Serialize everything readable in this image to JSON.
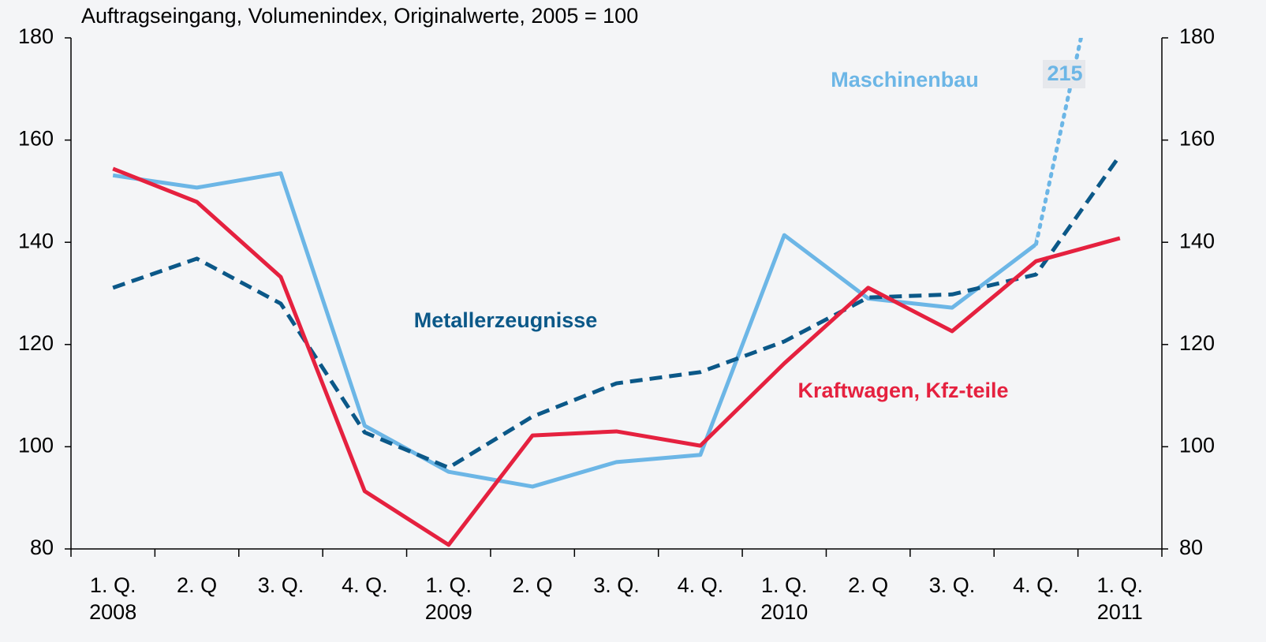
{
  "chart_data": {
    "type": "line",
    "title": "Auftragseingang, Volumenindex, Originalwerte,  2005 = 100",
    "categories": [
      "1. Q.",
      "2. Q",
      "3. Q.",
      "4. Q.",
      "1. Q.",
      "2. Q",
      "3. Q.",
      "4. Q.",
      "1. Q.",
      "2. Q",
      "3. Q.",
      "4. Q.",
      "1. Q."
    ],
    "years": [
      "2008",
      null,
      null,
      null,
      "2009",
      null,
      null,
      null,
      "2010",
      null,
      null,
      null,
      "2011"
    ],
    "series": [
      {
        "name": "Maschinenbau",
        "color": "#6cb6e6",
        "dotted_from": 11,
        "values": [
          153.1,
          150.7,
          153.5,
          104.1,
          95.1,
          92.2,
          97.0,
          98.4,
          141.4,
          129.0,
          127.2,
          139.6,
          215
        ],
        "value_labels": [
          null,
          null,
          null,
          null,
          null,
          null,
          null,
          null,
          null,
          null,
          null,
          null,
          "215"
        ]
      },
      {
        "name": "Metallerzeugnisse",
        "color": "#0b5888",
        "dashed": true,
        "values": [
          131.1,
          136.8,
          128.0,
          102.8,
          95.9,
          105.9,
          112.4,
          114.6,
          120.6,
          129.2,
          129.8,
          133.7,
          157.0
        ]
      },
      {
        "name": "Kraftwagen, Kfz-teile",
        "color": "#e5213f",
        "values": [
          154.4,
          147.9,
          133.2,
          91.3,
          80.8,
          102.2,
          103.0,
          100.2,
          116.3,
          131.1,
          122.6,
          136.3,
          140.8
        ]
      }
    ],
    "ylim": [
      80,
      180
    ],
    "yticks": [
      80,
      100,
      120,
      140,
      160,
      180
    ],
    "y2lim": [
      80,
      180
    ],
    "y2ticks": [
      80,
      100,
      120,
      140,
      160,
      180
    ],
    "grid": false
  }
}
